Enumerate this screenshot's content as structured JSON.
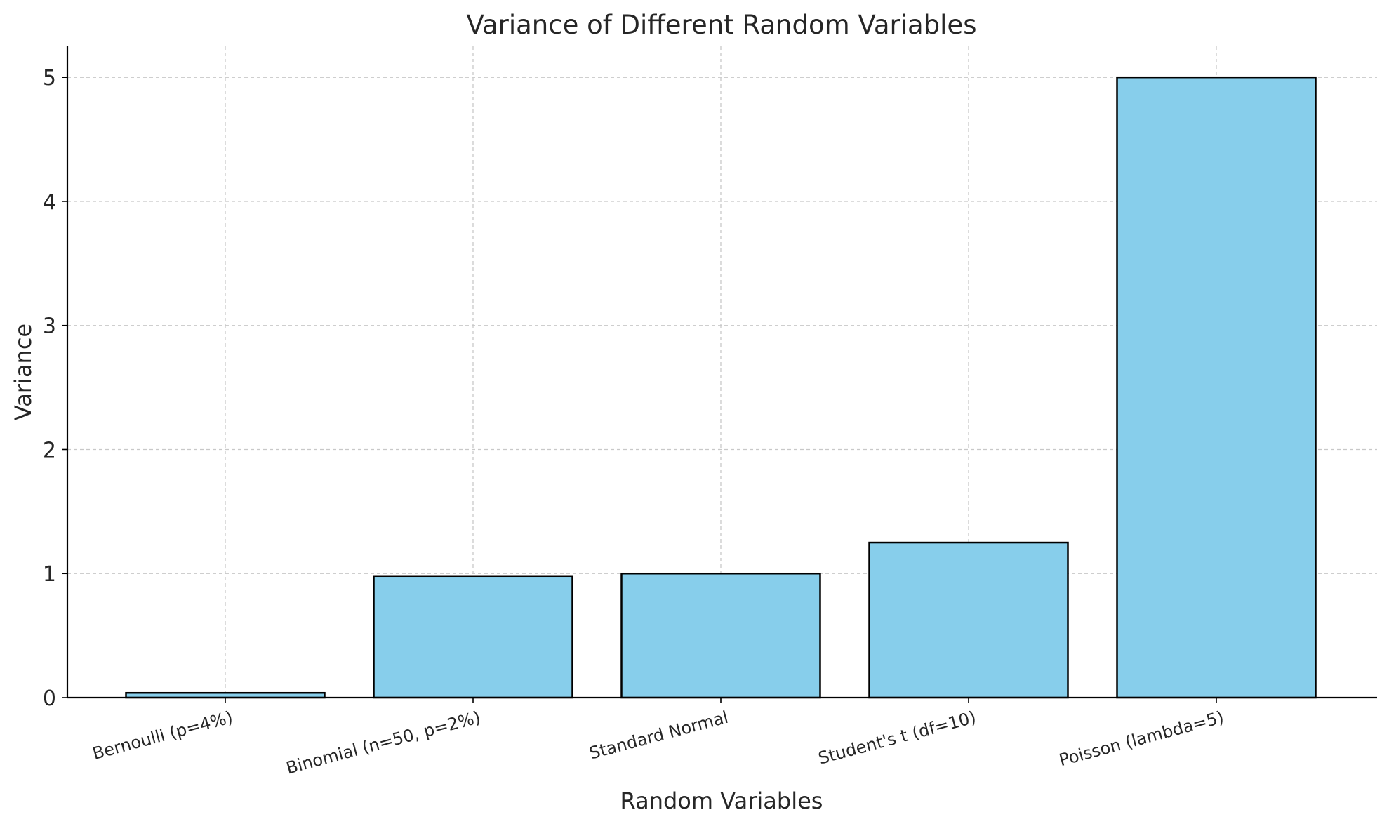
{
  "chart_data": {
    "type": "bar",
    "title": "Variance of Different Random Variables",
    "xlabel": "Random Variables",
    "ylabel": "Variance",
    "categories": [
      "Bernoulli (p=4%)",
      "Binomial (n=50, p=2%)",
      "Standard Normal",
      "Student's t (df=10)",
      "Poisson (lambda=5)"
    ],
    "values": [
      0.0384,
      0.98,
      1.0,
      1.25,
      5.0
    ],
    "ylim": [
      0,
      5.25
    ],
    "yticks": [
      "0",
      "1",
      "2",
      "3",
      "4",
      "5"
    ],
    "grid": true,
    "bar_color": "#87ceeb",
    "bar_edge_color": "#000000"
  }
}
